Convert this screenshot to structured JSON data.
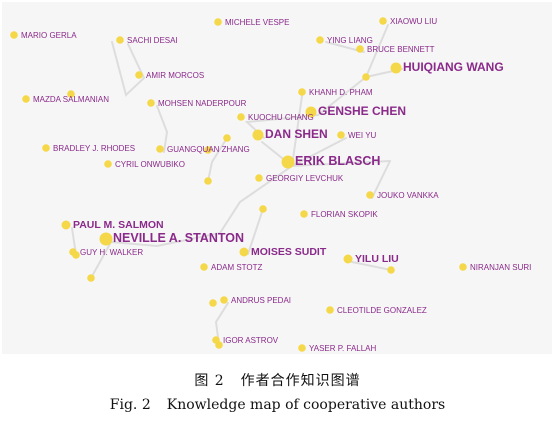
{
  "figure": {
    "caption_cn": {
      "label": "图 2",
      "text": "作者合作知识图谱"
    },
    "caption_en": {
      "label": "Fig. 2",
      "text": "Knowledge map of cooperative authors"
    }
  },
  "colors": {
    "node": "#f5d84a",
    "label": "#8a2a8a",
    "edge": "#dddddd",
    "background": "#f6f6f6"
  },
  "authors": [
    {
      "name": "MARIO GERLA",
      "size": "small"
    },
    {
      "name": "SACHI DESAI",
      "size": "small"
    },
    {
      "name": "MICHELE VESPE",
      "size": "small"
    },
    {
      "name": "YING LIANG",
      "size": "small"
    },
    {
      "name": "XIAOWU LIU",
      "size": "small"
    },
    {
      "name": "BRUCE BENNETT",
      "size": "small"
    },
    {
      "name": "HUIQIANG WANG",
      "size": "large"
    },
    {
      "name": "AMIR MORCOS",
      "size": "small"
    },
    {
      "name": "MAZDA SALMANIAN",
      "size": "small"
    },
    {
      "name": "MOHSEN NADERPOUR",
      "size": "small"
    },
    {
      "name": "KHANH D. PHAM",
      "size": "small"
    },
    {
      "name": "KUOCHU CHANG",
      "size": "small"
    },
    {
      "name": "GENSHE CHEN",
      "size": "large"
    },
    {
      "name": "DAN SHEN",
      "size": "large"
    },
    {
      "name": "WEI YU",
      "size": "small"
    },
    {
      "name": "BRADLEY J. RHODES",
      "size": "small"
    },
    {
      "name": "GUANGQUAN ZHANG",
      "size": "small"
    },
    {
      "name": "ERIK BLASCH",
      "size": "xlarge"
    },
    {
      "name": "CYRIL ONWUBIKO",
      "size": "small"
    },
    {
      "name": "GEORGIY LEVCHUK",
      "size": "small"
    },
    {
      "name": "JOUKO VANKKA",
      "size": "small"
    },
    {
      "name": "FLORIAN SKOPIK",
      "size": "small"
    },
    {
      "name": "PAUL M. SALMON",
      "size": "medium"
    },
    {
      "name": "NEVILLE A. STANTON",
      "size": "xlarge"
    },
    {
      "name": "GUY H. WALKER",
      "size": "small"
    },
    {
      "name": "MOISES SUDIT",
      "size": "medium"
    },
    {
      "name": "YILU LIU",
      "size": "medium"
    },
    {
      "name": "ADAM STOTZ",
      "size": "small"
    },
    {
      "name": "NIRANJAN SURI",
      "size": "small"
    },
    {
      "name": "ANDRUS PEDAI",
      "size": "small"
    },
    {
      "name": "CLEOTILDE GONZALEZ",
      "size": "small"
    },
    {
      "name": "IGOR ASTROV",
      "size": "small"
    },
    {
      "name": "YASER P. FALLAH",
      "size": "small"
    }
  ]
}
